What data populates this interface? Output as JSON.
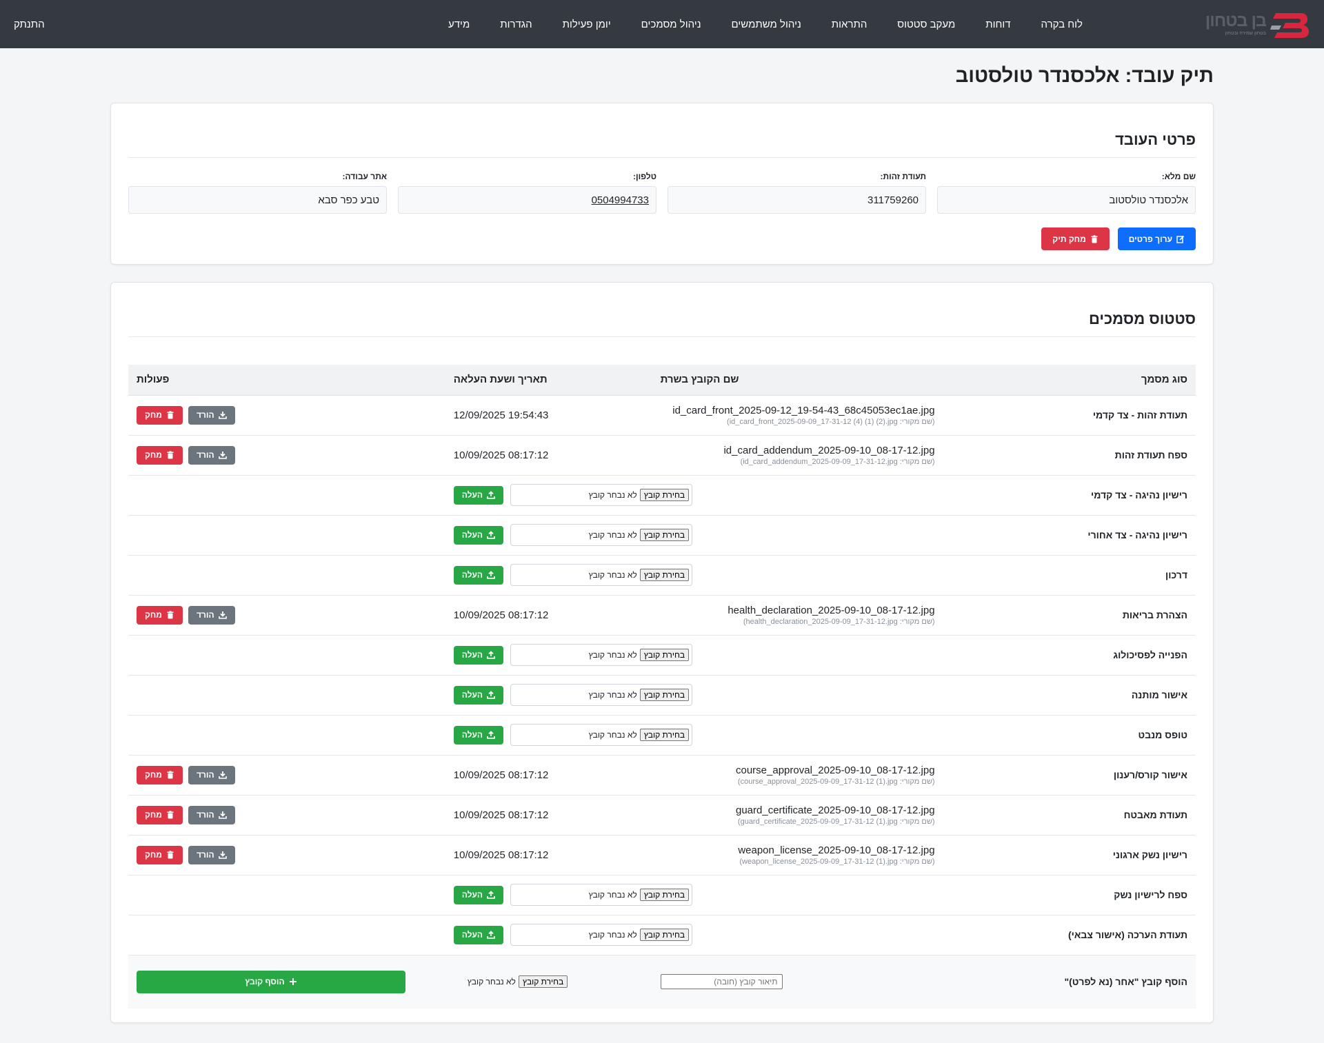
{
  "nav": {
    "brand": {
      "name": "בן בטחון",
      "tagline": "בטחון שמירה ובטחון"
    },
    "links": [
      "לוח בקרה",
      "דוחות",
      "מעקב סטטוס",
      "התראות",
      "ניהול משתמשים",
      "ניהול מסמכים",
      "יומן פעילות",
      "הגדרות",
      "מידע"
    ],
    "logout": "התנתק"
  },
  "page": {
    "title": "תיק עובד: אלכסנדר טולסטוב"
  },
  "details": {
    "title": "פרטי העובד",
    "fields": [
      {
        "label": "שם מלא:",
        "value": "אלכסנדר טולסטוב"
      },
      {
        "label": "תעודת זהות:",
        "value": "311759260"
      },
      {
        "label": "טלפון:",
        "value": "0504994733"
      },
      {
        "label": "אתר עבודה:",
        "value": "טבע כפר סבא"
      }
    ],
    "edit_label": "ערוך פרטים",
    "delete_label": "מחק תיק"
  },
  "docs": {
    "title": "סטטוס מסמכים",
    "headers": {
      "type": "סוג מסמך",
      "file": "שם הקובץ בשרת",
      "date": "תאריך ושעת העלאה",
      "actions": "פעולות"
    },
    "download_label": "הורד",
    "delete_label": "מחק",
    "choose_label": "בחירת קובץ",
    "no_file_label": "לא נבחר קובץ",
    "upload_label": "העלה",
    "rows": [
      {
        "type": "תעודת זהות - צד קדמי",
        "file": "id_card_front_2025-09-12_19-54-43_68c45053ec1ae.jpg",
        "orig": "(שם מקורי: id_card_front_2025-09-09_17-31-12 (4) (1) (2).jpg)",
        "date": "12/09/2025 19:54:43",
        "uploaded": true
      },
      {
        "type": "ספח תעודת זהות",
        "file": "id_card_addendum_2025-09-10_08-17-12.jpg",
        "orig": "(שם מקורי: id_card_addendum_2025-09-09_17-31-12.jpg)",
        "date": "10/09/2025 08:17:12",
        "uploaded": true
      },
      {
        "type": "רישיון נהיגה - צד קדמי",
        "uploaded": false
      },
      {
        "type": "רישיון נהיגה - צד אחורי",
        "uploaded": false
      },
      {
        "type": "דרכון",
        "uploaded": false
      },
      {
        "type": "הצהרת בריאות",
        "file": "health_declaration_2025-09-10_08-17-12.jpg",
        "orig": "(שם מקורי: health_declaration_2025-09-09_17-31-12.jpg)",
        "date": "10/09/2025 08:17:12",
        "uploaded": true
      },
      {
        "type": "הפנייה לפסיכולוג",
        "uploaded": false
      },
      {
        "type": "אישור מותנה",
        "uploaded": false
      },
      {
        "type": "טופס מנבט",
        "uploaded": false
      },
      {
        "type": "אישור קורס/רענון",
        "file": "course_approval_2025-09-10_08-17-12.jpg",
        "orig": "(שם מקורי: course_approval_2025-09-09_17-31-12 (1).jpg)",
        "date": "10/09/2025 08:17:12",
        "uploaded": true
      },
      {
        "type": "תעודת מאבטח",
        "file": "guard_certificate_2025-09-10_08-17-12.jpg",
        "orig": "(שם מקורי: guard_certificate_2025-09-09_17-31-12 (1).jpg)",
        "date": "10/09/2025 08:17:12",
        "uploaded": true
      },
      {
        "type": "רישיון נשק ארגוני",
        "file": "weapon_license_2025-09-10_08-17-12.jpg",
        "orig": "(שם מקורי: weapon_license_2025-09-09_17-31-12 (1).jpg)",
        "date": "10/09/2025 08:17:12",
        "uploaded": true
      },
      {
        "type": "ספח לרישיון נשק",
        "uploaded": false
      },
      {
        "type": "תעודת הערכה (אישור צבאי)",
        "uploaded": false
      }
    ],
    "add_other": {
      "label": "הוסף קובץ \"אחר (נא לפרט)\"",
      "desc_placeholder": "תיאור קובץ (חובה)",
      "button_label": "הוסף קובץ"
    }
  },
  "colors": {
    "primary": "#0d6efd",
    "danger": "#dc3545",
    "secondary": "#6c757d",
    "success": "#28a745",
    "navbar": "#343a40"
  }
}
